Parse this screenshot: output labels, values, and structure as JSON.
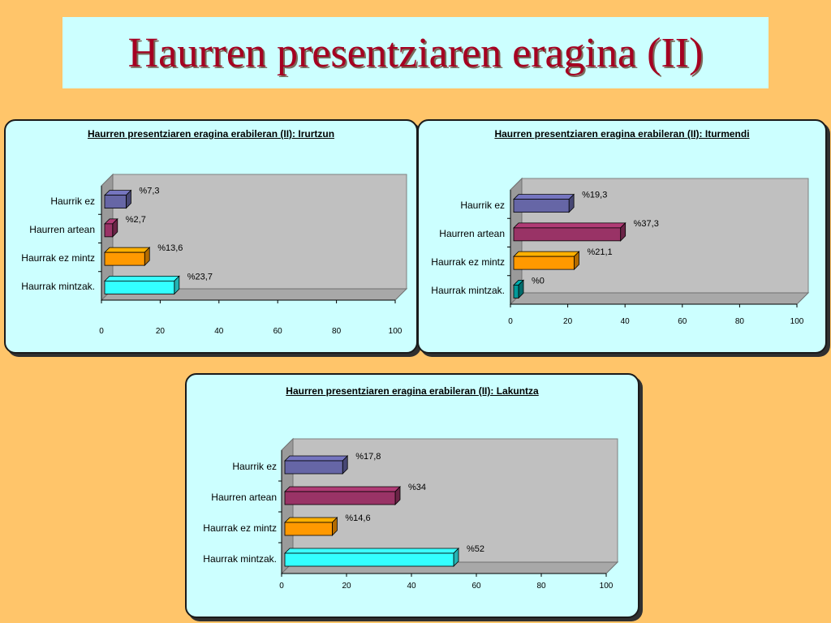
{
  "page": {
    "title": "Haurren presentziaren eragina (II)"
  },
  "chart_data": [
    {
      "type": "bar",
      "orientation": "horizontal",
      "title": "Haurren presentziaren eragina erabileran (II): Irurtzun",
      "categories": [
        "Haurrik ez",
        "Haurren artean",
        "Haurrak ez mintz",
        "Haurrak mintzak."
      ],
      "values": [
        7.3,
        2.7,
        13.6,
        23.7
      ],
      "data_labels": [
        "%7,3",
        "%2,7",
        "%13,6",
        "%23,7"
      ],
      "xlim": [
        0,
        100
      ],
      "xticks": [
        0,
        20,
        40,
        60,
        80,
        100
      ],
      "bar_colors": [
        "#6666A6",
        "#993366",
        "#FF9900",
        "#33FFFF"
      ],
      "grid": false,
      "legend": "none"
    },
    {
      "type": "bar",
      "orientation": "horizontal",
      "title": "Haurren presentziaren eragina erabileran (II): Iturmendi",
      "categories": [
        "Haurrik ez",
        "Haurren artean",
        "Haurrak ez mintz",
        "Haurrak mintzak."
      ],
      "values": [
        19.3,
        37.3,
        21.1,
        0
      ],
      "data_labels": [
        "%19,3",
        "%37,3",
        "%21,1",
        "%0"
      ],
      "xlim": [
        0,
        100
      ],
      "xticks": [
        0,
        20,
        40,
        60,
        80,
        100
      ],
      "bar_colors": [
        "#6666A6",
        "#993366",
        "#FF9900",
        "#009999"
      ],
      "grid": false,
      "legend": "none"
    },
    {
      "type": "bar",
      "orientation": "horizontal",
      "title": "Haurren presentziaren eragina erabileran (II): Lakuntza",
      "categories": [
        "Haurrik ez",
        "Haurren artean",
        "Haurrak ez mintz",
        "Haurrak mintzak."
      ],
      "values": [
        17.8,
        34,
        14.6,
        52
      ],
      "data_labels": [
        "%17,8",
        "%34",
        "%14,6",
        "%52"
      ],
      "xlim": [
        0,
        100
      ],
      "xticks": [
        0,
        20,
        40,
        60,
        80,
        100
      ],
      "bar_colors": [
        "#6666A6",
        "#993366",
        "#FF9900",
        "#33FFFF"
      ],
      "grid": false,
      "legend": "none"
    }
  ]
}
